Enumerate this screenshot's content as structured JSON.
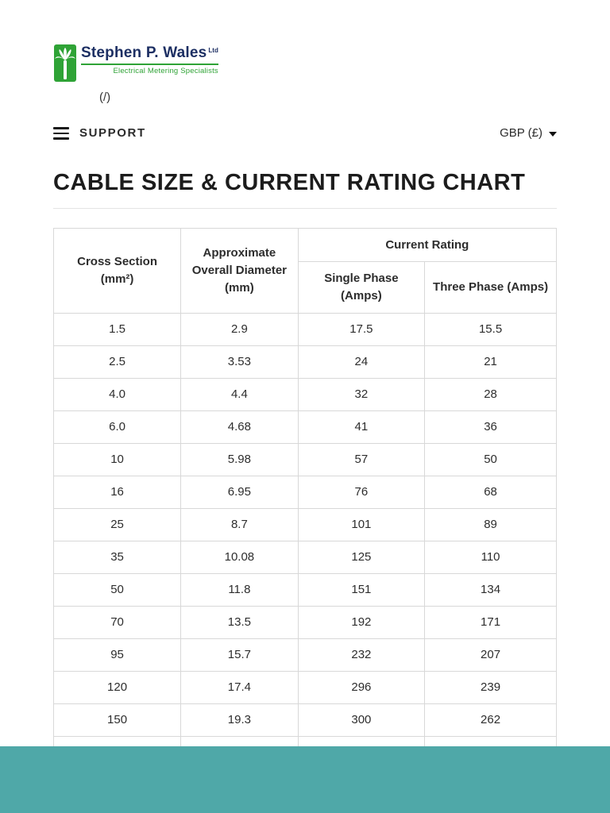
{
  "header": {
    "brand": "Stephen P. Wales",
    "brand_suffix": "Ltd",
    "tagline": "Electrical Metering Specialists",
    "home_link": "(/)",
    "support_label": "SUPPORT",
    "currency_label": "GBP (£)"
  },
  "page_title": "CABLE SIZE & CURRENT RATING CHART",
  "chart_data": {
    "type": "table",
    "title": "CABLE SIZE & CURRENT RATING CHART",
    "group_header": "Current Rating",
    "columns": [
      "Cross Section (mm²)",
      "Approximate Overall Diameter (mm)",
      "Single Phase (Amps)",
      "Three Phase (Amps)"
    ],
    "rows": [
      [
        "1.5",
        "2.9",
        "17.5",
        "15.5"
      ],
      [
        "2.5",
        "3.53",
        "24",
        "21"
      ],
      [
        "4.0",
        "4.4",
        "32",
        "28"
      ],
      [
        "6.0",
        "4.68",
        "41",
        "36"
      ],
      [
        "10",
        "5.98",
        "57",
        "50"
      ],
      [
        "16",
        "6.95",
        "76",
        "68"
      ],
      [
        "25",
        "8.7",
        "101",
        "89"
      ],
      [
        "35",
        "10.08",
        "125",
        "110"
      ],
      [
        "50",
        "11.8",
        "151",
        "134"
      ],
      [
        "70",
        "13.5",
        "192",
        "171"
      ],
      [
        "95",
        "15.7",
        "232",
        "207"
      ],
      [
        "120",
        "17.4",
        "296",
        "239"
      ],
      [
        "150",
        "19.3",
        "300",
        "262"
      ]
    ],
    "partial_row_visible": true
  },
  "colors": {
    "logo_green": "#2fa336",
    "brand_navy": "#1d2f63",
    "footer_teal": "#4fa8a8",
    "table_border": "#d8d8d8"
  }
}
